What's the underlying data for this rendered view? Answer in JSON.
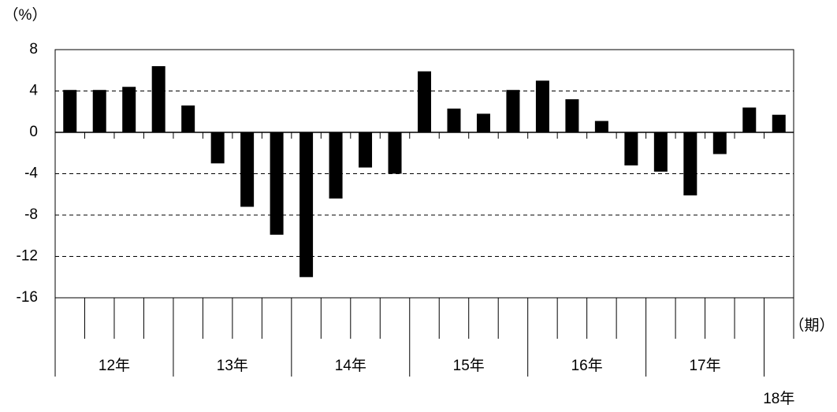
{
  "chart_data": {
    "type": "bar",
    "y_unit_label": "（%）",
    "x_unit_label": "（期）",
    "categories": [
      null,
      null,
      null,
      null,
      null,
      null,
      null,
      null,
      null,
      null,
      null,
      null,
      null,
      null,
      null,
      null,
      null,
      null,
      null,
      null,
      null,
      null,
      null,
      null,
      null
    ],
    "values": [
      4.1,
      4.1,
      4.4,
      6.4,
      2.6,
      -3.0,
      -7.2,
      -9.9,
      -14.0,
      -6.4,
      -3.4,
      -4.0,
      5.9,
      2.3,
      1.8,
      4.1,
      5.0,
      3.2,
      1.1,
      -3.2,
      -3.8,
      -6.1,
      -2.1,
      2.4,
      1.7
    ],
    "color": "#000000",
    "year_labels": [
      "12年",
      "13年",
      "14年",
      "15年",
      "16年",
      "17年",
      "18年"
    ],
    "ylim": [
      -16,
      8
    ],
    "yticks": [
      -16,
      -12,
      -8,
      -4,
      0,
      4,
      8
    ],
    "grid": true
  }
}
